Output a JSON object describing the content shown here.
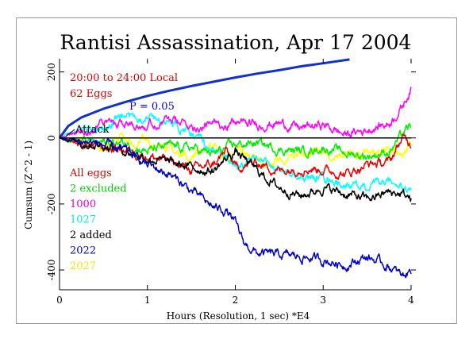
{
  "chart_data": {
    "type": "line",
    "title": "Rantisi Assassination, Apr 17 2004",
    "xlabel": "Hours (Resolution, 1 sec)   *E4",
    "ylabel": "Cumsum (Z^2 - 1)",
    "xlim": [
      0,
      4
    ],
    "ylim": [
      -460,
      240
    ],
    "x_ticks": [
      0,
      1,
      2,
      3,
      4
    ],
    "x_tick_labels": [
      "0",
      "1",
      "2",
      "3",
      "4"
    ],
    "y_ticks": [
      -400,
      -200,
      0,
      200
    ],
    "y_tick_labels": [
      "-400",
      "-200",
      "0",
      "200"
    ],
    "grid": false,
    "annotations": [
      {
        "text": "20:00 to 24:00 Local",
        "color": "#e00000"
      },
      {
        "text": "62 Eggs",
        "color": "#e00000"
      },
      {
        "text": "P = 0.05",
        "color": "#0000e0"
      },
      {
        "text": "Attack",
        "color": "#000000"
      }
    ],
    "probability_curve": {
      "name": "P = 0.05",
      "color": "#1030d0",
      "x": [
        0,
        0.1,
        0.25,
        0.5,
        0.75,
        1.0,
        1.25,
        1.5,
        1.75,
        2.0,
        2.25,
        2.5,
        2.75,
        3.0,
        3.3
      ],
      "y": [
        0,
        28,
        48,
        68,
        84,
        98,
        110,
        121,
        131,
        141,
        150,
        158,
        167,
        174,
        183
      ]
    },
    "series": [
      {
        "name": "2027",
        "color": "#ffff00",
        "x": [
          0,
          0.25,
          0.5,
          0.75,
          1.0,
          1.25,
          1.5,
          1.75,
          1.9,
          2.0,
          2.25,
          2.5,
          2.75,
          3.0,
          3.25,
          3.5,
          3.75,
          3.9,
          4.0
        ],
        "y": [
          0,
          -15,
          -20,
          -5,
          -15,
          -30,
          -55,
          -20,
          -60,
          -30,
          -75,
          -65,
          -55,
          -40,
          -50,
          -35,
          -40,
          -55,
          -25
        ]
      },
      {
        "name": "1027",
        "color": "#00ffff",
        "x": [
          0,
          0.25,
          0.5,
          0.75,
          1.0,
          1.25,
          1.5,
          1.75,
          2.0,
          2.25,
          2.5,
          2.75,
          3.0,
          3.25,
          3.5,
          3.75,
          4.0
        ],
        "y": [
          0,
          25,
          30,
          60,
          70,
          45,
          10,
          -35,
          -80,
          -70,
          -95,
          -120,
          -120,
          -140,
          -150,
          -135,
          -165
        ]
      },
      {
        "name": "1000",
        "color": "#ff00ff",
        "x": [
          0,
          0.25,
          0.5,
          0.75,
          1.0,
          1.25,
          1.5,
          1.75,
          2.0,
          2.25,
          2.5,
          2.75,
          3.0,
          3.25,
          3.5,
          3.75,
          3.9,
          4.0
        ],
        "y": [
          0,
          20,
          45,
          50,
          40,
          55,
          35,
          40,
          50,
          40,
          45,
          30,
          40,
          10,
          25,
          45,
          95,
          150
        ]
      },
      {
        "name": "2 excluded",
        "color": "#00ee00",
        "x": [
          0,
          0.25,
          0.5,
          0.75,
          1.0,
          1.25,
          1.5,
          1.75,
          2.0,
          2.25,
          2.5,
          2.75,
          3.0,
          3.25,
          3.5,
          3.75,
          3.9,
          4.0
        ],
        "y": [
          0,
          -10,
          -15,
          -15,
          -40,
          -25,
          -30,
          -50,
          -20,
          -15,
          -35,
          -40,
          -30,
          -45,
          -55,
          -40,
          10,
          35
        ]
      },
      {
        "name": "All eggs",
        "color": "#ee0000",
        "x": [
          0,
          0.25,
          0.5,
          0.75,
          1.0,
          1.25,
          1.5,
          1.75,
          1.9,
          2.0,
          2.25,
          2.5,
          2.75,
          3.0,
          3.25,
          3.5,
          3.75,
          3.9,
          4.0
        ],
        "y": [
          0,
          -20,
          -30,
          -35,
          -55,
          -70,
          -95,
          -80,
          -40,
          -90,
          -75,
          -100,
          -90,
          -95,
          -110,
          -80,
          -75,
          0,
          -20
        ]
      },
      {
        "name": "2 added",
        "color": "#000000",
        "x": [
          0,
          0.25,
          0.5,
          0.75,
          1.0,
          1.25,
          1.5,
          1.75,
          1.85,
          2.0,
          2.25,
          2.5,
          2.75,
          3.0,
          3.25,
          3.5,
          3.75,
          3.9,
          4.0
        ],
        "y": [
          0,
          -15,
          -20,
          -40,
          -60,
          -75,
          -90,
          -100,
          -75,
          -40,
          -100,
          -150,
          -175,
          -150,
          -170,
          -185,
          -165,
          -170,
          -185
        ]
      },
      {
        "name": "2022",
        "color": "#0000cc",
        "x": [
          0,
          0.25,
          0.5,
          0.75,
          1.0,
          1.25,
          1.5,
          1.75,
          1.9,
          2.0,
          2.1,
          2.25,
          2.5,
          2.75,
          3.0,
          3.25,
          3.5,
          3.75,
          3.9,
          4.0
        ],
        "y": [
          0,
          -10,
          -20,
          -40,
          -80,
          -110,
          -160,
          -210,
          -220,
          -260,
          -320,
          -350,
          -355,
          -360,
          -370,
          -385,
          -360,
          -390,
          -420,
          -400
        ]
      }
    ],
    "legend": {
      "placement": "left",
      "entries": [
        {
          "label": "All eggs",
          "color": "#e00000"
        },
        {
          "label": "2 excluded",
          "color": "#00d000"
        },
        {
          "label": "1000",
          "color": "#e000e0"
        },
        {
          "label": "1027",
          "color": "#00e8e8"
        },
        {
          "label": "2 added",
          "color": "#000000"
        },
        {
          "label": "2022",
          "color": "#0000c0"
        },
        {
          "label": "2027",
          "color": "#e8e800"
        }
      ]
    }
  }
}
